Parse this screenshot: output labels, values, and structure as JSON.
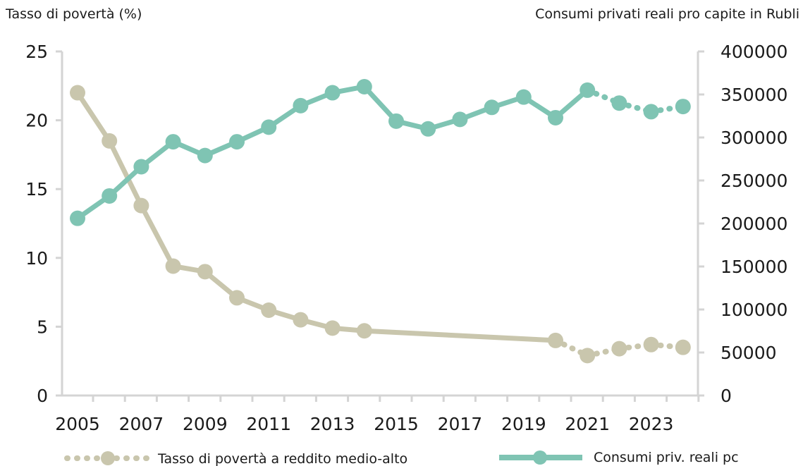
{
  "chart_data": {
    "type": "line",
    "left_axis_label": "Tasso di povertà (%)",
    "right_axis_label": "Consumi privati reali pro capite in Rubli",
    "left_ylim": [
      0,
      25
    ],
    "right_ylim": [
      0,
      400000
    ],
    "left_ticks": [
      "0",
      "5",
      "10",
      "15",
      "20",
      "25"
    ],
    "right_ticks": [
      "0",
      "50000",
      "100000",
      "150000",
      "200000",
      "250000",
      "300000",
      "350000",
      "400000"
    ],
    "x_ticks": [
      "2005",
      "2007",
      "2009",
      "2011",
      "2013",
      "2015",
      "2017",
      "2019",
      "2021",
      "2023"
    ],
    "grid": false,
    "legend_position": "bottom",
    "series": [
      {
        "name": "Tasso di povertà a reddito medio-alto",
        "axis": "left",
        "color": "#c9c6ad",
        "points": [
          {
            "x": 2005,
            "y": 22.0
          },
          {
            "x": 2006,
            "y": 18.5
          },
          {
            "x": 2007,
            "y": 13.8
          },
          {
            "x": 2008,
            "y": 9.4
          },
          {
            "x": 2009,
            "y": 9.0
          },
          {
            "x": 2010,
            "y": 7.1
          },
          {
            "x": 2011,
            "y": 6.2
          },
          {
            "x": 2012,
            "y": 5.5
          },
          {
            "x": 2013,
            "y": 4.9
          },
          {
            "x": 2014,
            "y": 4.7
          },
          {
            "x": 2020,
            "y": 4.0
          },
          {
            "x": 2021,
            "y": 2.9,
            "projected": true
          },
          {
            "x": 2022,
            "y": 3.4,
            "projected": true
          },
          {
            "x": 2023,
            "y": 3.7,
            "projected": true
          },
          {
            "x": 2024,
            "y": 3.5,
            "projected": true
          }
        ]
      },
      {
        "name": "Consumi priv. reali pc",
        "axis": "right",
        "color": "#7fc4b3",
        "points": [
          {
            "x": 2005,
            "y": 206000
          },
          {
            "x": 2006,
            "y": 232000
          },
          {
            "x": 2007,
            "y": 266000
          },
          {
            "x": 2008,
            "y": 295000
          },
          {
            "x": 2009,
            "y": 279000
          },
          {
            "x": 2010,
            "y": 295000
          },
          {
            "x": 2011,
            "y": 312000
          },
          {
            "x": 2012,
            "y": 337000
          },
          {
            "x": 2013,
            "y": 352000
          },
          {
            "x": 2014,
            "y": 359000
          },
          {
            "x": 2015,
            "y": 319000
          },
          {
            "x": 2016,
            "y": 310000
          },
          {
            "x": 2017,
            "y": 321000
          },
          {
            "x": 2018,
            "y": 335000
          },
          {
            "x": 2019,
            "y": 347000
          },
          {
            "x": 2020,
            "y": 323000
          },
          {
            "x": 2021,
            "y": 355000
          },
          {
            "x": 2022,
            "y": 340000,
            "projected": true
          },
          {
            "x": 2023,
            "y": 330000,
            "projected": true
          },
          {
            "x": 2024,
            "y": 336000,
            "projected": true
          }
        ]
      }
    ]
  }
}
